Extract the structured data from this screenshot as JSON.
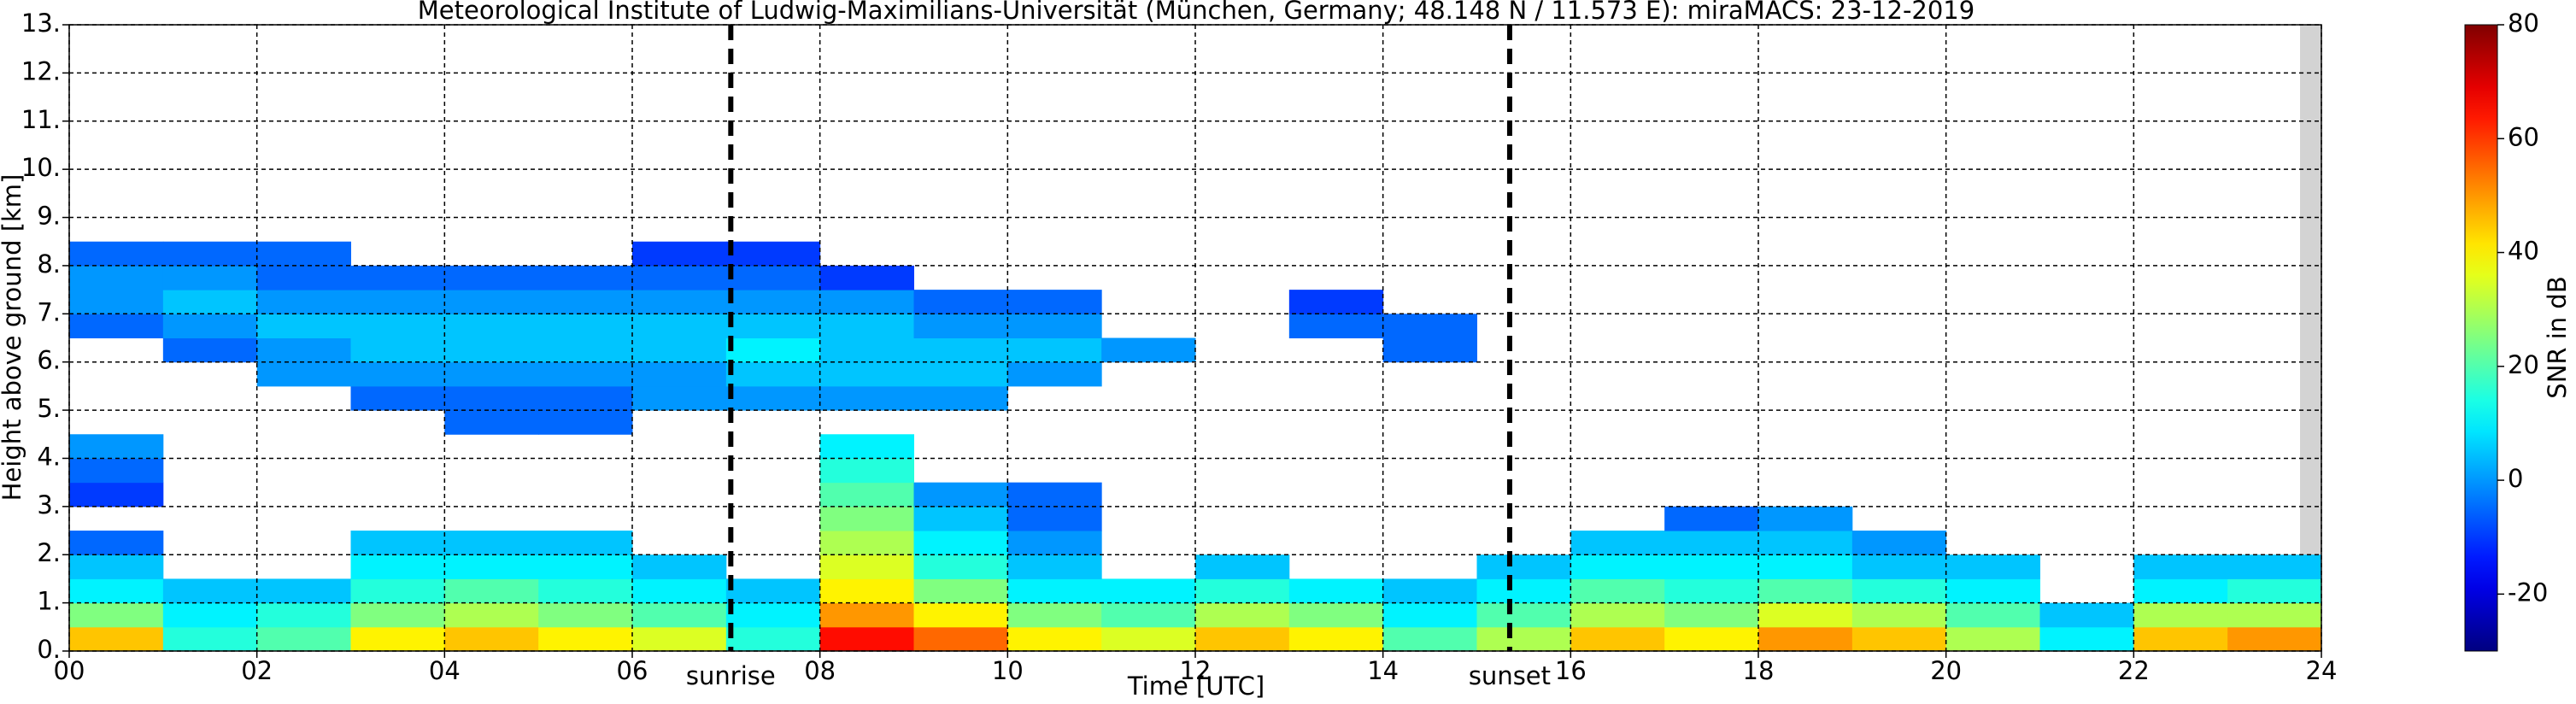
{
  "chart_data": {
    "type": "heatmap",
    "title": "Meteorological Institute of Ludwig-Maximilians-Universität (München, Germany; 48.148 N / 11.573 E):    miraMACS: 23-12-2019",
    "x_label": "Time [UTC]",
    "y_label": "Height above ground [km]",
    "colorbar_label": "SNR in dB",
    "xlim": [
      0,
      24
    ],
    "ylim": [
      0,
      13
    ],
    "clim": [
      -30,
      80
    ],
    "xticks": [
      {
        "value": 0,
        "label": "00"
      },
      {
        "value": 2,
        "label": "02"
      },
      {
        "value": 4,
        "label": "04"
      },
      {
        "value": 6,
        "label": "06"
      },
      {
        "value": 8,
        "label": "08"
      },
      10,
      12,
      14,
      16,
      18,
      20,
      22,
      24
    ],
    "yticks": [
      {
        "value": 0,
        "label": "0."
      },
      {
        "value": 1,
        "label": "1."
      },
      {
        "value": 2,
        "label": "2."
      },
      {
        "value": 3,
        "label": "3."
      },
      {
        "value": 4,
        "label": "4."
      },
      {
        "value": 5,
        "label": "5."
      },
      {
        "value": 6,
        "label": "6."
      },
      {
        "value": 7,
        "label": "7."
      },
      {
        "value": 8,
        "label": "8."
      },
      {
        "value": 9,
        "label": "9."
      },
      {
        "value": 10,
        "label": "10."
      },
      {
        "value": 11,
        "label": "11."
      },
      {
        "value": 12,
        "label": "12."
      },
      {
        "value": 13,
        "label": "13."
      }
    ],
    "cticks": [
      -20,
      0,
      20,
      40,
      60,
      80
    ],
    "grid": true,
    "colormap": "jet",
    "annotations": [
      {
        "x": 7.05,
        "label": "sunrise"
      },
      {
        "x": 15.35,
        "label": "sunset"
      }
    ],
    "x_edges": [
      0,
      1,
      2,
      3,
      4,
      5,
      6,
      7,
      8,
      9,
      10,
      11,
      12,
      13,
      14,
      15,
      16,
      17,
      18,
      19,
      20,
      21,
      22,
      23,
      24
    ],
    "y_edges": [
      0,
      0.5,
      1,
      1.5,
      2,
      2.5,
      3,
      3.5,
      4,
      4.5,
      5,
      5.5,
      6,
      6.5,
      7,
      7.5,
      8,
      8.5
    ],
    "z": [
      [
        45,
        15,
        20,
        40,
        45,
        40,
        35,
        15,
        65,
        55,
        40,
        35,
        45,
        40,
        20,
        30,
        45,
        40,
        50,
        45,
        30,
        10,
        45,
        50
      ],
      [
        25,
        10,
        15,
        25,
        30,
        25,
        20,
        10,
        50,
        40,
        25,
        20,
        30,
        25,
        10,
        20,
        30,
        25,
        35,
        30,
        20,
        5,
        30,
        30
      ],
      [
        10,
        5,
        5,
        15,
        20,
        15,
        10,
        5,
        40,
        25,
        10,
        10,
        15,
        10,
        5,
        10,
        20,
        15,
        20,
        15,
        10,
        null,
        10,
        15
      ],
      [
        5,
        null,
        null,
        10,
        10,
        10,
        5,
        null,
        35,
        15,
        5,
        null,
        5,
        null,
        null,
        5,
        10,
        10,
        10,
        5,
        5,
        null,
        5,
        5
      ],
      [
        -5,
        null,
        null,
        5,
        5,
        5,
        null,
        null,
        30,
        10,
        0,
        null,
        null,
        null,
        null,
        null,
        5,
        5,
        5,
        0,
        null,
        null,
        null,
        null
      ],
      [
        null,
        null,
        null,
        null,
        null,
        null,
        null,
        null,
        25,
        5,
        -5,
        null,
        null,
        null,
        null,
        null,
        null,
        -5,
        0,
        null,
        null,
        null,
        null,
        null
      ],
      [
        -10,
        null,
        null,
        null,
        null,
        null,
        null,
        null,
        20,
        0,
        -5,
        null,
        null,
        null,
        null,
        null,
        null,
        null,
        null,
        null,
        null,
        null,
        null,
        null
      ],
      [
        -5,
        null,
        null,
        null,
        null,
        null,
        null,
        null,
        15,
        null,
        null,
        null,
        null,
        null,
        null,
        null,
        null,
        null,
        null,
        null,
        null,
        null,
        null,
        null
      ],
      [
        0,
        null,
        null,
        null,
        null,
        null,
        null,
        null,
        10,
        null,
        null,
        null,
        null,
        null,
        null,
        null,
        null,
        null,
        null,
        null,
        null,
        null,
        null,
        null
      ],
      [
        null,
        null,
        null,
        null,
        -5,
        -5,
        null,
        null,
        null,
        null,
        null,
        null,
        null,
        null,
        null,
        null,
        null,
        null,
        null,
        null,
        null,
        null,
        null,
        null
      ],
      [
        null,
        null,
        null,
        -5,
        -5,
        -5,
        0,
        0,
        0,
        0,
        null,
        null,
        null,
        null,
        null,
        null,
        null,
        null,
        null,
        null,
        null,
        null,
        null,
        null
      ],
      [
        null,
        null,
        0,
        0,
        0,
        0,
        0,
        5,
        5,
        5,
        0,
        null,
        null,
        null,
        null,
        null,
        null,
        null,
        null,
        null,
        null,
        null,
        null,
        null
      ],
      [
        null,
        -5,
        0,
        5,
        5,
        5,
        5,
        10,
        5,
        5,
        5,
        0,
        null,
        null,
        -5,
        null,
        null,
        null,
        null,
        null,
        null,
        null,
        null,
        null
      ],
      [
        -5,
        0,
        5,
        5,
        5,
        5,
        5,
        5,
        5,
        0,
        0,
        null,
        null,
        -5,
        -5,
        null,
        null,
        null,
        null,
        null,
        null,
        null,
        null,
        null
      ],
      [
        0,
        5,
        0,
        0,
        0,
        0,
        0,
        0,
        0,
        -5,
        -5,
        null,
        null,
        -10,
        null,
        null,
        null,
        null,
        null,
        null,
        null,
        null,
        null,
        null
      ],
      [
        0,
        0,
        -5,
        -5,
        -5,
        -5,
        -5,
        -5,
        -10,
        null,
        null,
        null,
        null,
        null,
        null,
        null,
        null,
        null,
        null,
        null,
        null,
        null,
        null,
        null
      ],
      [
        -5,
        -5,
        -5,
        null,
        null,
        null,
        -10,
        -10,
        null,
        null,
        null,
        null,
        null,
        null,
        null,
        null,
        null,
        null,
        null,
        null,
        null,
        null,
        null,
        null
      ]
    ]
  }
}
